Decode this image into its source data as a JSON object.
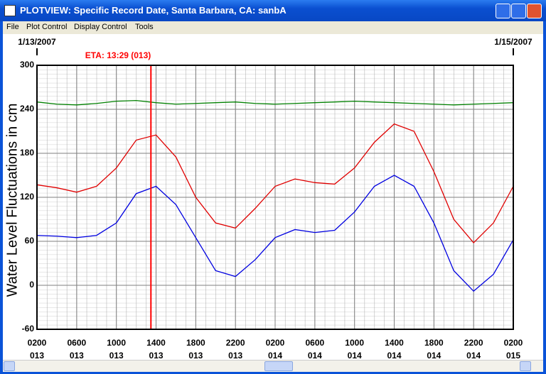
{
  "window": {
    "title": "PLOTVIEW: Specific Record Date, Santa Barbara, CA: sanbA",
    "menu": [
      "File",
      "Plot Control",
      "Display Control",
      "Tools"
    ]
  },
  "chart_data": {
    "type": "line",
    "ylabel": "Water Level Fluctuations in cm",
    "start_date": "1/13/2007",
    "end_date": "1/15/2007",
    "eta": {
      "label": "ETA: 13:29 (013)",
      "x": 13.483,
      "color": "#ff0000"
    },
    "x": [
      2,
      4,
      6,
      8,
      10,
      12,
      14,
      16,
      18,
      20,
      22,
      24,
      26,
      28,
      30,
      32,
      34,
      36,
      38,
      40,
      42,
      44,
      46,
      48,
      50
    ],
    "series": [
      {
        "color": "#008000",
        "values": [
          250,
          247,
          246,
          248,
          251,
          252,
          249,
          247,
          248,
          249,
          250,
          248,
          247,
          248,
          249,
          250,
          251,
          250,
          249,
          248,
          247,
          246,
          247,
          248,
          249
        ]
      },
      {
        "color": "#e00000",
        "values": [
          137,
          133,
          127,
          135,
          160,
          198,
          205,
          175,
          120,
          85,
          78,
          105,
          135,
          145,
          140,
          138,
          160,
          195,
          220,
          210,
          155,
          90,
          58,
          85,
          135
        ]
      },
      {
        "color": "#0000e0",
        "values": [
          68,
          67,
          65,
          68,
          85,
          125,
          135,
          110,
          65,
          20,
          12,
          35,
          65,
          76,
          72,
          75,
          100,
          135,
          150,
          135,
          85,
          20,
          -8,
          15,
          62
        ]
      }
    ],
    "xlim": [
      2,
      50
    ],
    "xticks": [
      {
        "value": 2,
        "label": "0200\n013"
      },
      {
        "value": 6,
        "label": "0600\n013"
      },
      {
        "value": 10,
        "label": "1000\n013"
      },
      {
        "value": 14,
        "label": "1400\n013"
      },
      {
        "value": 18,
        "label": "1800\n013"
      },
      {
        "value": 22,
        "label": "2200\n013"
      },
      {
        "value": 26,
        "label": "0200\n014"
      },
      {
        "value": 30,
        "label": "0600\n014"
      },
      {
        "value": 34,
        "label": "1000\n014"
      },
      {
        "value": 38,
        "label": "1400\n014"
      },
      {
        "value": 42,
        "label": "1800\n014"
      },
      {
        "value": 46,
        "label": "2200\n014"
      },
      {
        "value": 50,
        "label": "0200\n015"
      }
    ],
    "ylim": [
      -60,
      300
    ],
    "yticks": [
      300,
      240,
      180,
      120,
      60,
      0,
      -60
    ],
    "grid": true
  }
}
